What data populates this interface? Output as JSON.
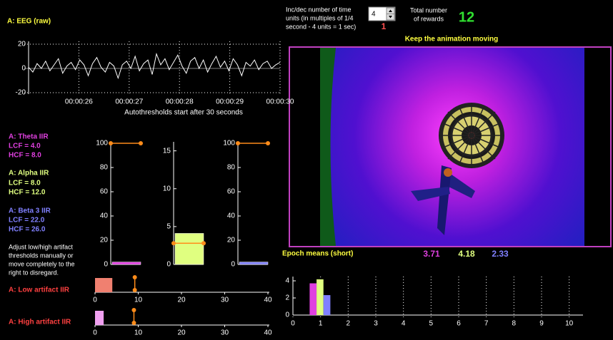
{
  "eeg": {
    "title": "A: EEG (raw)",
    "ylim": [
      -20,
      20
    ],
    "yticks": [
      -20,
      0,
      20
    ],
    "xlim": [
      25,
      30
    ],
    "xticks": [
      {
        "value": 26,
        "label": "00:00:26"
      },
      {
        "value": 27,
        "label": "00:00:27"
      },
      {
        "value": 28,
        "label": "00:00:28"
      },
      {
        "value": 29,
        "label": "00:00:29"
      },
      {
        "value": 30,
        "label": "00:00:30"
      }
    ],
    "samples": [
      1,
      -3,
      4,
      0,
      6,
      -2,
      3,
      8,
      -4,
      2,
      5,
      -1,
      7,
      3,
      -6,
      4,
      9,
      1,
      -3,
      5,
      2,
      -8,
      3,
      6,
      0,
      10,
      -2,
      4,
      7,
      -5,
      12,
      3,
      8,
      -1,
      5,
      11,
      2,
      -4,
      6,
      9,
      0,
      7,
      -3,
      4,
      10,
      1,
      6,
      -2,
      8,
      3,
      -6,
      5,
      2,
      7,
      -1,
      4,
      6,
      0,
      3,
      5
    ],
    "caption": "Autothresholds start after 30 seconds"
  },
  "bands": [
    {
      "title": "A: Theta IIR",
      "lcf": "LCF = 4.0",
      "hcf": "HCF = 8.0",
      "color": "#e040e0",
      "ylim": [
        0,
        100
      ],
      "yticks": [
        0,
        20,
        40,
        60,
        80,
        100
      ],
      "value": 2,
      "threshold": 100
    },
    {
      "title": "A: Alpha IIR",
      "lcf": "LCF = 8.0",
      "hcf": "HCF = 12.0",
      "color": "#e0ff80",
      "ylim": [
        0,
        16
      ],
      "yticks": [
        0,
        5,
        10,
        15
      ],
      "value": 4.1,
      "threshold": 2.8
    },
    {
      "title": "A: Beta 3 IIR",
      "lcf": "LCF = 22.0",
      "hcf": "HCF = 26.0",
      "color": "#8080ff",
      "ylim": [
        0,
        100
      ],
      "yticks": [
        0,
        20,
        40,
        60,
        80,
        100
      ],
      "value": 2,
      "threshold": 100
    }
  ],
  "note": [
    "Adjust low/high artifact",
    "thresholds manually or",
    "move completely to the",
    "right to disregard."
  ],
  "artifacts": [
    {
      "title": "A: Low artifact IIR",
      "color": "#f08070",
      "value": 4,
      "threshold": 9.2,
      "xlim": [
        0,
        40
      ],
      "xticks": [
        0,
        10,
        20,
        30,
        40
      ]
    },
    {
      "title": "A: High artifact IIR",
      "color": "#f0a0f0",
      "value": 2,
      "threshold": 9,
      "xlim": [
        0,
        40
      ],
      "xticks": [
        0,
        10,
        20,
        30,
        40
      ]
    }
  ],
  "controls": {
    "time_units_label": [
      "Inc/dec number of time",
      "units (in multiples of 1/4",
      "second - 4 units = 1 sec)"
    ],
    "time_units": 4,
    "time_units_secondary": 1,
    "rewards_label": [
      "Total number",
      "of rewards"
    ],
    "rewards": 12,
    "instruction": "Keep the animation moving"
  },
  "epoch_means": {
    "title": "Epoch means (short)",
    "values": [
      3.71,
      4.18,
      2.33
    ],
    "colors": [
      "#e040e0",
      "#e0ff80",
      "#8080ff"
    ],
    "x": [
      0.73,
      0.98,
      1.23
    ],
    "xlim": [
      0,
      10.5
    ],
    "xticks": [
      0,
      1,
      2,
      3,
      4,
      5,
      6,
      7,
      8,
      9,
      10
    ],
    "ylim": [
      0,
      4.5
    ],
    "yticks": [
      0,
      2,
      4
    ]
  }
}
